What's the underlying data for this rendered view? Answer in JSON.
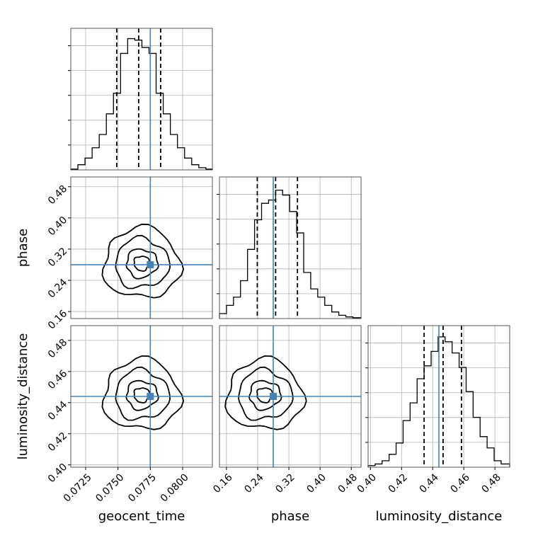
{
  "chart_data": {
    "type": "corner",
    "parameters": [
      "geocent_time",
      "phase",
      "luminosity_distance"
    ],
    "x_ticks": {
      "geocent_time": [
        "0.0725",
        "0.0750",
        "0.0775",
        "0.0800"
      ],
      "phase": [
        "0.16",
        "0.24",
        "0.32",
        "0.40",
        "0.48"
      ],
      "luminosity_distance": [
        "0.40",
        "0.42",
        "0.44",
        "0.46",
        "0.48"
      ]
    },
    "y_ticks": {
      "phase": [
        "0.48",
        "0.40",
        "0.32",
        "0.24",
        "0.16"
      ],
      "luminosity_distance": [
        "0.48",
        "0.46",
        "0.44",
        "0.42",
        "0.40"
      ]
    },
    "ranges": {
      "geocent_time": [
        0.07135,
        0.0823
      ],
      "phase": [
        0.142,
        0.505
      ],
      "luminosity_distance": [
        0.3985,
        0.4895
      ]
    },
    "truths": {
      "geocent_time": 0.0775,
      "phase": 0.28,
      "luminosity_distance": 0.444
    },
    "quantiles": {
      "geocent_time": [
        0.0749,
        0.0766,
        0.0783
      ],
      "phase": [
        0.239,
        0.286,
        0.342
      ],
      "luminosity_distance": [
        0.4345,
        0.4467,
        0.4585
      ]
    },
    "histograms": {
      "geocent_time": {
        "bins": [
          0.07135,
          0.0719,
          0.07245,
          0.073,
          0.07355,
          0.0741,
          0.07465,
          0.0752,
          0.07575,
          0.0763,
          0.07685,
          0.0774,
          0.07795,
          0.0785,
          0.07905,
          0.0796,
          0.08015,
          0.0807,
          0.08125,
          0.0818,
          0.0823
        ],
        "counts": [
          0.5,
          3.5,
          8,
          15,
          24,
          38,
          52,
          79,
          89,
          88,
          83,
          79,
          52,
          38,
          24,
          15,
          8,
          3.5,
          1.5,
          0.5
        ]
      },
      "phase": {
        "bins": [
          0.142,
          0.16,
          0.178,
          0.196,
          0.214,
          0.232,
          0.25,
          0.268,
          0.286,
          0.304,
          0.322,
          0.34,
          0.358,
          0.376,
          0.394,
          0.412,
          0.43,
          0.448,
          0.466,
          0.484,
          0.505
        ],
        "counts": [
          3,
          8,
          13,
          23,
          42,
          60,
          70,
          72,
          78,
          75,
          65,
          52,
          28,
          18,
          13,
          8,
          4,
          2,
          1,
          0.5
        ]
      },
      "luminosity_distance": {
        "bins": [
          0.3985,
          0.403,
          0.4075,
          0.412,
          0.4165,
          0.421,
          0.4255,
          0.43,
          0.4345,
          0.439,
          0.4435,
          0.448,
          0.4525,
          0.457,
          0.4615,
          0.466,
          0.4705,
          0.475,
          0.4795,
          0.484,
          0.4895
        ],
        "counts": [
          1,
          2,
          4,
          8,
          15,
          29,
          40,
          55,
          63,
          72,
          81,
          78,
          71,
          62,
          47,
          31,
          19,
          12,
          4,
          2
        ]
      }
    },
    "histogram_y_limits": {
      "geocent_time": [
        0,
        96
      ],
      "phase": [
        0,
        86
      ],
      "luminosity_distance": [
        0,
        88
      ]
    },
    "colors": {
      "truth": "#4682b4",
      "hist": "#000000",
      "quantile": "#000000",
      "grid": "#b0b0b0",
      "points": "#9a9a9a",
      "density": "#000000"
    },
    "grid": true
  }
}
